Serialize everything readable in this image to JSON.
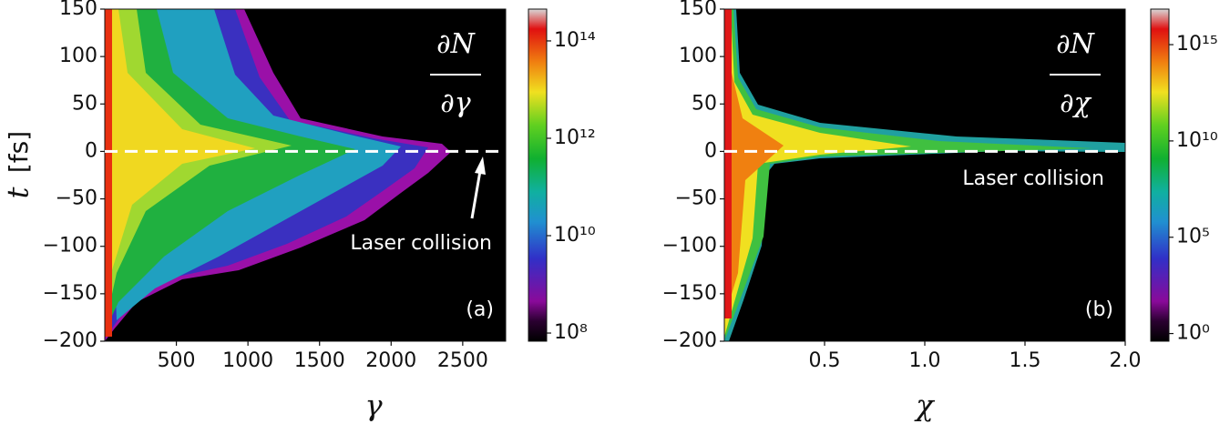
{
  "chart_data": [
    {
      "type": "heatmap",
      "xlabel": "γ",
      "ylabel": {
        "symbol": "t",
        "unit": "[fs]"
      },
      "xlim": [
        0,
        2800
      ],
      "ylim": [
        -200,
        150
      ],
      "xticks": [
        500,
        1000,
        1500,
        2000,
        2500
      ],
      "yticks": [
        {
          "value": -200,
          "label": "−200"
        },
        {
          "value": -150,
          "label": "−150"
        },
        {
          "value": -100,
          "label": "−100"
        },
        {
          "value": -50,
          "label": "−50"
        },
        0,
        50,
        100,
        150
      ],
      "colorbar": {
        "log": true,
        "clim": [
          68000000,
          450000000000000
        ],
        "ticks": [
          {
            "value": 100000000,
            "label": "10⁸"
          },
          {
            "value": 10000000000,
            "label": "10¹⁰"
          },
          {
            "value": 1000000000000,
            "label": "10¹²"
          },
          {
            "value": 100000000000000,
            "label": "10¹⁴"
          }
        ]
      },
      "fraction": {
        "numerator": "∂N",
        "denominator": "∂γ"
      },
      "annotation": "Laser collision",
      "panel_label": "(a)",
      "marker_line": 0
    },
    {
      "type": "heatmap",
      "xlabel": "χ",
      "xlim": [
        0,
        2
      ],
      "ylim": [
        -200,
        150
      ],
      "xticks": [
        0.5,
        {
          "value": 1,
          "label": "1.0"
        },
        1.5,
        {
          "value": 2,
          "label": "2.0"
        }
      ],
      "yticks": [
        {
          "value": -200,
          "label": "−200"
        },
        {
          "value": -150,
          "label": "−150"
        },
        {
          "value": -100,
          "label": "−100"
        },
        {
          "value": -50,
          "label": "−50"
        },
        0,
        50,
        100,
        150
      ],
      "colorbar": {
        "log": true,
        "clim": [
          0.4,
          70000000000000000
        ],
        "ticks": [
          {
            "value": 1,
            "label": "10⁰"
          },
          {
            "value": 100000,
            "label": "10⁵"
          },
          {
            "value": 10000000000,
            "label": "10¹⁰"
          },
          {
            "value": 1000000000000000,
            "label": "10¹⁵"
          }
        ]
      },
      "fraction": {
        "numerator": "∂N",
        "denominator": "∂χ"
      },
      "annotation": "Laser collision",
      "panel_label": "(b)",
      "marker_line": 0
    }
  ]
}
